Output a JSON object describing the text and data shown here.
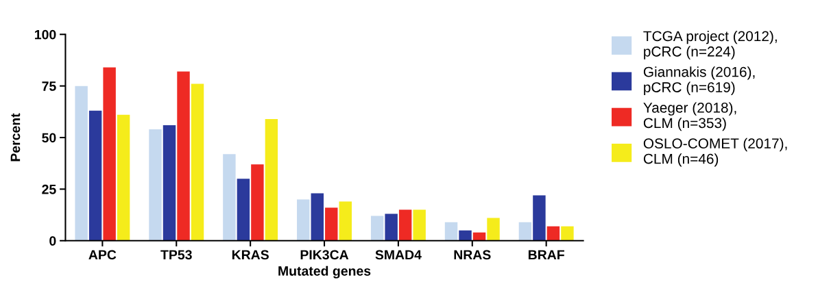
{
  "chart_data": {
    "type": "bar",
    "xlabel": "Mutated genes",
    "ylabel": "Percent",
    "categories": [
      "APC",
      "TP53",
      "KRAS",
      "PIK3CA",
      "SMAD4",
      "NRAS",
      "BRAF"
    ],
    "series": [
      {
        "name": "TCGA project (2012),\npCRC (n=224)",
        "color": "#c5d9ef",
        "values": [
          75,
          54,
          42,
          20,
          12,
          9,
          9
        ]
      },
      {
        "name": "Giannakis (2016),\npCRC (n=619)",
        "color": "#2b3a9c",
        "values": [
          63,
          56,
          30,
          23,
          13,
          5,
          22
        ]
      },
      {
        "name": "Yaeger (2018),\nCLM (n=353)",
        "color": "#ee2a24",
        "values": [
          84,
          82,
          37,
          16,
          15,
          4,
          7
        ]
      },
      {
        "name": "OSLO-COMET (2017),\nCLM (n=46)",
        "color": "#f5ec1b",
        "values": [
          61,
          76,
          59,
          19,
          15,
          11,
          7
        ]
      }
    ],
    "ylim": [
      0,
      100
    ],
    "yticks": [
      0,
      25,
      50,
      75,
      100
    ],
    "grid": false,
    "legend": "right"
  }
}
